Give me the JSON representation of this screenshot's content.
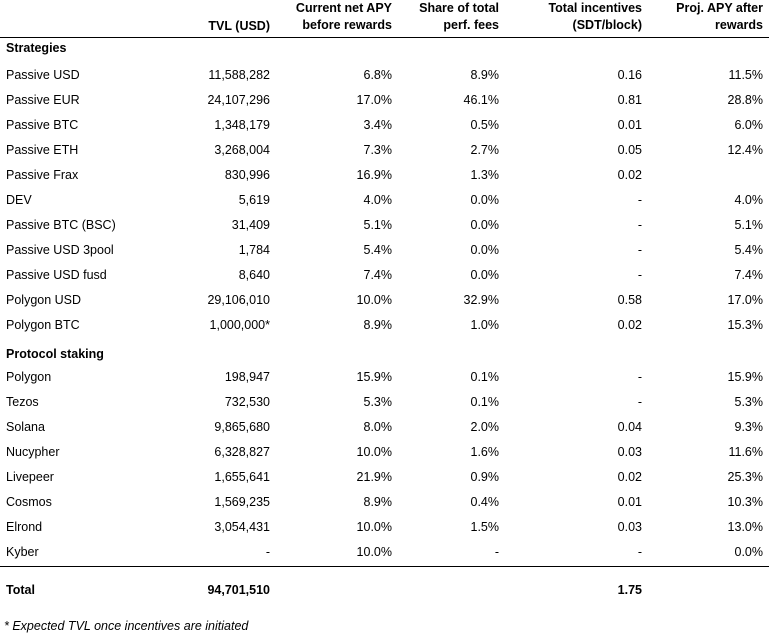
{
  "headers": {
    "tvl": "TVL (USD)",
    "apy_line1": "Current net APY",
    "apy_line2": "before rewards",
    "share_line1": "Share of total",
    "share_line2": "perf. fees",
    "inc_line1": "Total incentives",
    "inc_line2": "(SDT/block)",
    "proj_line1": "Proj. APY after",
    "proj_line2": "rewards"
  },
  "sections": {
    "strategies": "Strategies",
    "protocol_staking": "Protocol staking"
  },
  "strategies": [
    {
      "name": "Passive USD",
      "tvl": "11,588,282",
      "apy": "6.8%",
      "share": "8.9%",
      "incentives": "0.16",
      "proj": "11.5%"
    },
    {
      "name": "Passive EUR",
      "tvl": "24,107,296",
      "apy": "17.0%",
      "share": "46.1%",
      "incentives": "0.81",
      "proj": "28.8%"
    },
    {
      "name": "Passive BTC",
      "tvl": "1,348,179",
      "apy": "3.4%",
      "share": "0.5%",
      "incentives": "0.01",
      "proj": "6.0%"
    },
    {
      "name": "Passive ETH",
      "tvl": "3,268,004",
      "apy": "7.3%",
      "share": "2.7%",
      "incentives": "0.05",
      "proj": "12.4%"
    },
    {
      "name": "Passive Frax",
      "tvl": "830,996",
      "apy": "16.9%",
      "share": "1.3%",
      "incentives": "0.02",
      "proj": ""
    },
    {
      "name": "DEV",
      "tvl": "5,619",
      "apy": "4.0%",
      "share": "0.0%",
      "incentives": "-",
      "proj": "4.0%"
    },
    {
      "name": "Passive BTC (BSC)",
      "tvl": "31,409",
      "apy": "5.1%",
      "share": "0.0%",
      "incentives": "-",
      "proj": "5.1%"
    },
    {
      "name": "Passive USD 3pool",
      "tvl": "1,784",
      "apy": "5.4%",
      "share": "0.0%",
      "incentives": "-",
      "proj": "5.4%"
    },
    {
      "name": "Passive USD fusd",
      "tvl": "8,640",
      "apy": "7.4%",
      "share": "0.0%",
      "incentives": "-",
      "proj": "7.4%"
    },
    {
      "name": "Polygon USD",
      "tvl": "29,106,010",
      "apy": "10.0%",
      "share": "32.9%",
      "incentives": "0.58",
      "proj": "17.0%"
    },
    {
      "name": "Polygon BTC",
      "tvl": "1,000,000*",
      "apy": "8.9%",
      "share": "1.0%",
      "incentives": "0.02",
      "proj": "15.3%"
    }
  ],
  "staking": [
    {
      "name": "Polygon",
      "tvl": "198,947",
      "apy": "15.9%",
      "share": "0.1%",
      "incentives": "-",
      "proj": "15.9%"
    },
    {
      "name": "Tezos",
      "tvl": "732,530",
      "apy": "5.3%",
      "share": "0.1%",
      "incentives": "-",
      "proj": "5.3%"
    },
    {
      "name": "Solana",
      "tvl": "9,865,680",
      "apy": "8.0%",
      "share": "2.0%",
      "incentives": "0.04",
      "proj": "9.3%"
    },
    {
      "name": "Nucypher",
      "tvl": "6,328,827",
      "apy": "10.0%",
      "share": "1.6%",
      "incentives": "0.03",
      "proj": "11.6%"
    },
    {
      "name": "Livepeer",
      "tvl": "1,655,641",
      "apy": "21.9%",
      "share": "0.9%",
      "incentives": "0.02",
      "proj": "25.3%"
    },
    {
      "name": "Cosmos",
      "tvl": "1,569,235",
      "apy": "8.9%",
      "share": "0.4%",
      "incentives": "0.01",
      "proj": "10.3%"
    },
    {
      "name": "Elrond",
      "tvl": "3,054,431",
      "apy": "10.0%",
      "share": "1.5%",
      "incentives": "0.03",
      "proj": "13.0%"
    },
    {
      "name": "Kyber",
      "tvl": "-",
      "apy": "10.0%",
      "share": "-",
      "incentives": "-",
      "proj": "0.0%"
    }
  ],
  "total": {
    "label": "Total",
    "tvl": "94,701,510",
    "incentives": "1.75"
  },
  "footnote": "* Expected TVL once incentives are initiated"
}
